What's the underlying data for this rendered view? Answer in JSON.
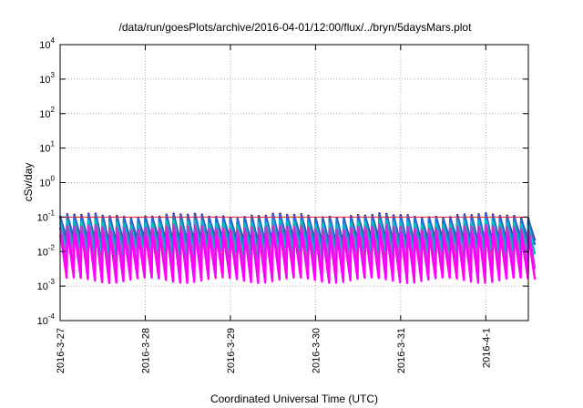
{
  "chart_data": {
    "type": "line",
    "title": "/data/run/goesPlots/archive/2016-04-01/12:00/flux/../bryn/5daysMars.plot",
    "xlabel": "Coordinated Universal Time (UTC)",
    "ylabel": "cSv/day",
    "y_scale": "log",
    "ylim": [
      0.0001,
      10000
    ],
    "y_ticks": [
      {
        "base": "10",
        "exp": "-4"
      },
      {
        "base": "10",
        "exp": "-3"
      },
      {
        "base": "10",
        "exp": "-2"
      },
      {
        "base": "10",
        "exp": "-1"
      },
      {
        "base": "10",
        "exp": "0"
      },
      {
        "base": "10",
        "exp": "1"
      },
      {
        "base": "10",
        "exp": "2"
      },
      {
        "base": "10",
        "exp": "3"
      },
      {
        "base": "10",
        "exp": "4"
      }
    ],
    "x_ticks": [
      "2016-3-27",
      "2016-3-28",
      "2016-3-29",
      "2016-3-30",
      "2016-3-31",
      "2016-4-1"
    ],
    "xlim": [
      "2016-03-27T00:00",
      "2016-04-01T12:00"
    ],
    "grid": true,
    "reference_line": {
      "value": 0.1,
      "color": "#e0202a"
    },
    "oscillation_period_hours": 2,
    "series": [
      {
        "color": "#ff00ff",
        "peak": 0.03,
        "trough": 0.0015
      },
      {
        "color": "#cc33cc",
        "peak": 0.05,
        "trough": 0.003
      },
      {
        "color": "#00bfbf",
        "peak": 0.07,
        "trough": 0.008
      },
      {
        "color": "#1e6fd9",
        "peak": 0.1,
        "trough": 0.015
      },
      {
        "color": "#5a2a9a",
        "peak": 0.11,
        "trough": 0.02
      }
    ],
    "colors": {
      "reference": "#e0202a",
      "grid": "#b0b0b0"
    }
  }
}
